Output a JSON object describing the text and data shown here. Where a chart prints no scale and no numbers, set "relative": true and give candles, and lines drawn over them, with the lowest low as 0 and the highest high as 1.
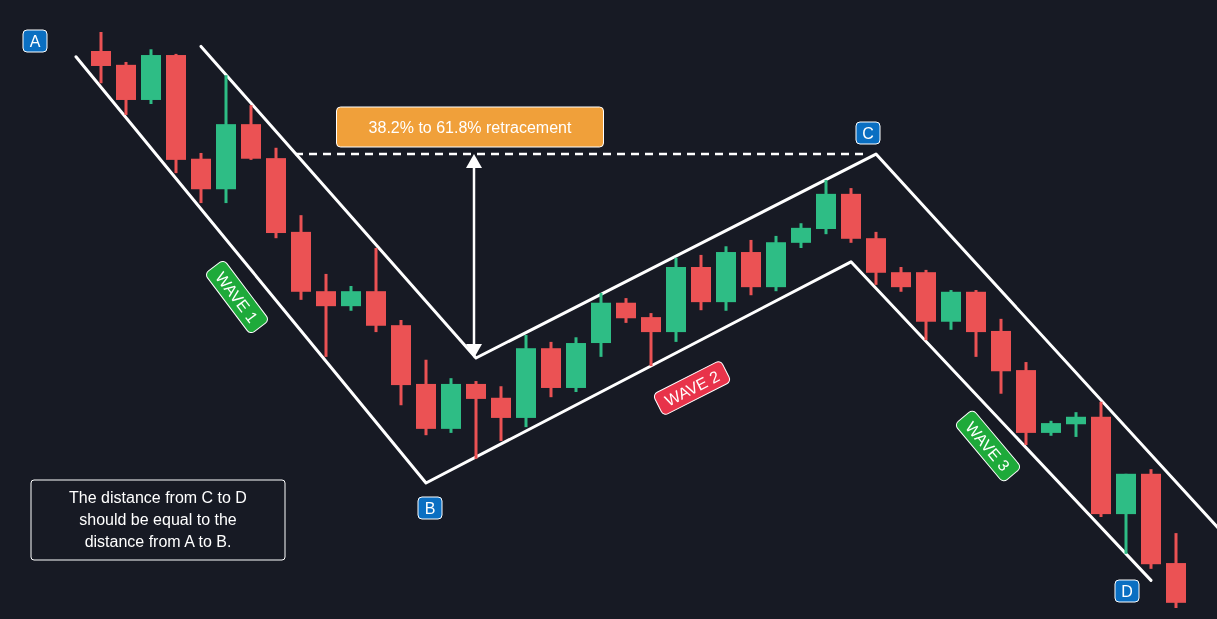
{
  "chart_data": {
    "type": "candlestick",
    "relative": true,
    "categories": [
      null,
      null,
      null,
      null,
      null,
      null,
      null,
      null,
      null,
      null,
      null,
      null,
      null,
      null,
      null,
      null,
      null,
      null,
      null,
      null,
      null,
      null,
      null,
      null,
      null,
      null,
      null,
      null,
      null,
      null,
      null,
      null,
      null,
      null,
      null,
      null,
      null,
      null,
      null,
      null,
      null,
      null,
      null,
      null,
      null,
      null,
      null,
      null
    ],
    "ohlc": [
      null,
      null,
      [
        0.967,
        1,
        0.911,
        0.941
      ],
      [
        0.943,
        0.948,
        0.856,
        0.882
      ],
      [
        0.882,
        0.97,
        0.875,
        0.96
      ],
      [
        0.96,
        0.962,
        0.755,
        0.778
      ],
      [
        0.78,
        0.79,
        0.703,
        0.727
      ],
      [
        0.727,
        0.925,
        0.703,
        0.84
      ],
      [
        0.84,
        0.873,
        0.778,
        0.78
      ],
      [
        0.781,
        0.799,
        0.642,
        0.651
      ],
      [
        0.653,
        0.682,
        0.535,
        0.549
      ],
      [
        0.55,
        0.58,
        0.436,
        0.524
      ],
      [
        0.524,
        0.559,
        0.516,
        0.55
      ],
      [
        0.55,
        0.625,
        0.479,
        0.49
      ],
      [
        0.491,
        0.5,
        0.352,
        0.387
      ],
      [
        0.389,
        0.431,
        0.3,
        0.311
      ],
      [
        0.311,
        0.399,
        0.304,
        0.389
      ],
      [
        0.389,
        0.394,
        0.259,
        0.363
      ],
      [
        0.365,
        0.385,
        0.29,
        0.33
      ],
      [
        0.33,
        0.474,
        0.314,
        0.451
      ],
      [
        0.451,
        0.462,
        0.366,
        0.382
      ],
      [
        0.382,
        0.47,
        0.375,
        0.46
      ],
      [
        0.46,
        0.547,
        0.436,
        0.53
      ],
      [
        0.53,
        0.538,
        0.495,
        0.503
      ],
      [
        0.505,
        0.512,
        0.42,
        0.479
      ],
      [
        0.479,
        0.608,
        0.462,
        0.592
      ],
      [
        0.592,
        0.613,
        0.517,
        0.531
      ],
      [
        0.531,
        0.628,
        0.516,
        0.618
      ],
      [
        0.618,
        0.639,
        0.543,
        0.557
      ],
      [
        0.557,
        0.646,
        0.55,
        0.635
      ],
      [
        0.634,
        0.668,
        0.625,
        0.66
      ],
      [
        0.658,
        0.743,
        0.649,
        0.719
      ],
      [
        0.719,
        0.729,
        0.634,
        0.641
      ],
      [
        0.642,
        0.653,
        0.561,
        0.582
      ],
      [
        0.583,
        0.592,
        0.549,
        0.557
      ],
      [
        0.583,
        0.587,
        0.465,
        0.497
      ],
      [
        0.497,
        0.552,
        0.483,
        0.549
      ],
      [
        0.549,
        0.552,
        0.436,
        0.479
      ],
      [
        0.481,
        0.502,
        0.372,
        0.411
      ],
      [
        0.413,
        0.427,
        0.283,
        0.304
      ],
      [
        0.304,
        0.325,
        0.299,
        0.321
      ],
      [
        0.319,
        0.34,
        0.297,
        0.332
      ],
      [
        0.332,
        0.358,
        0.158,
        0.163
      ],
      [
        0.163,
        0.233,
        0.094,
        0.233
      ],
      [
        0.233,
        0.241,
        0.068,
        0.076
      ],
      [
        0.078,
        0.13,
        0,
        0.009
      ],
      null,
      null
    ],
    "colors": [
      null,
      null,
      "#eb5254",
      "#eb5254",
      "#2ebd85",
      "#eb5254",
      "#eb5254",
      "#2ebd85",
      "#eb5254",
      "#eb5254",
      "#eb5254",
      "#eb5254",
      "#2ebd85",
      "#eb5254",
      "#eb5254",
      "#eb5254",
      "#2ebd85",
      "#eb5254",
      "#eb5254",
      "#2ebd85",
      "#eb5254",
      "#2ebd85",
      "#2ebd85",
      "#eb5254",
      "#eb5254",
      "#2ebd85",
      "#eb5254",
      "#2ebd85",
      "#eb5254",
      "#2ebd85",
      "#2ebd85",
      "#2ebd85",
      "#eb5254",
      "#eb5254",
      "#eb5254",
      "#eb5254",
      "#2ebd85",
      "#eb5254",
      "#eb5254",
      "#eb5254",
      "#2ebd85",
      "#2ebd85",
      "#eb5254",
      "#2ebd85",
      "#eb5254",
      "#eb5254",
      null,
      null
    ],
    "series": [
      {
        "type": "line",
        "color": "#ffffff",
        "values": [
          null,
          0.957,
          null,
          null,
          null,
          null,
          null,
          null,
          null,
          null,
          null,
          null,
          null,
          null,
          null,
          0.217,
          null,
          null,
          null,
          null,
          null,
          null,
          null,
          null,
          null,
          null,
          null,
          null,
          null,
          null,
          null,
          null,
          0.601,
          null,
          null,
          null,
          null,
          null,
          null,
          null,
          null,
          null,
          null,
          null,
          0.048,
          null,
          null,
          null
        ]
      },
      {
        "type": "line",
        "color": "#ffffff",
        "values": [
          null,
          null,
          null,
          null,
          null,
          null,
          0.975,
          null,
          null,
          null,
          null,
          null,
          null,
          null,
          null,
          null,
          null,
          0.434,
          null,
          null,
          null,
          null,
          null,
          null,
          null,
          null,
          null,
          null,
          null,
          null,
          null,
          null,
          null,
          0.788,
          null,
          null,
          null,
          null,
          null,
          null,
          null,
          null,
          null,
          null,
          null,
          null,
          null,
          0.124
        ]
      }
    ],
    "ref_lines": [
      {
        "axis": "y",
        "value": 0.788,
        "line_style": "dashed",
        "color": "#ffffff"
      }
    ],
    "annotations": [
      "A",
      "B",
      "C",
      "D",
      "WAVE 1",
      "WAVE 2",
      "WAVE 3",
      "38.2% to 61.8% retracement",
      "The distance from C to D should be equal to the distance from A to B."
    ]
  }
}
